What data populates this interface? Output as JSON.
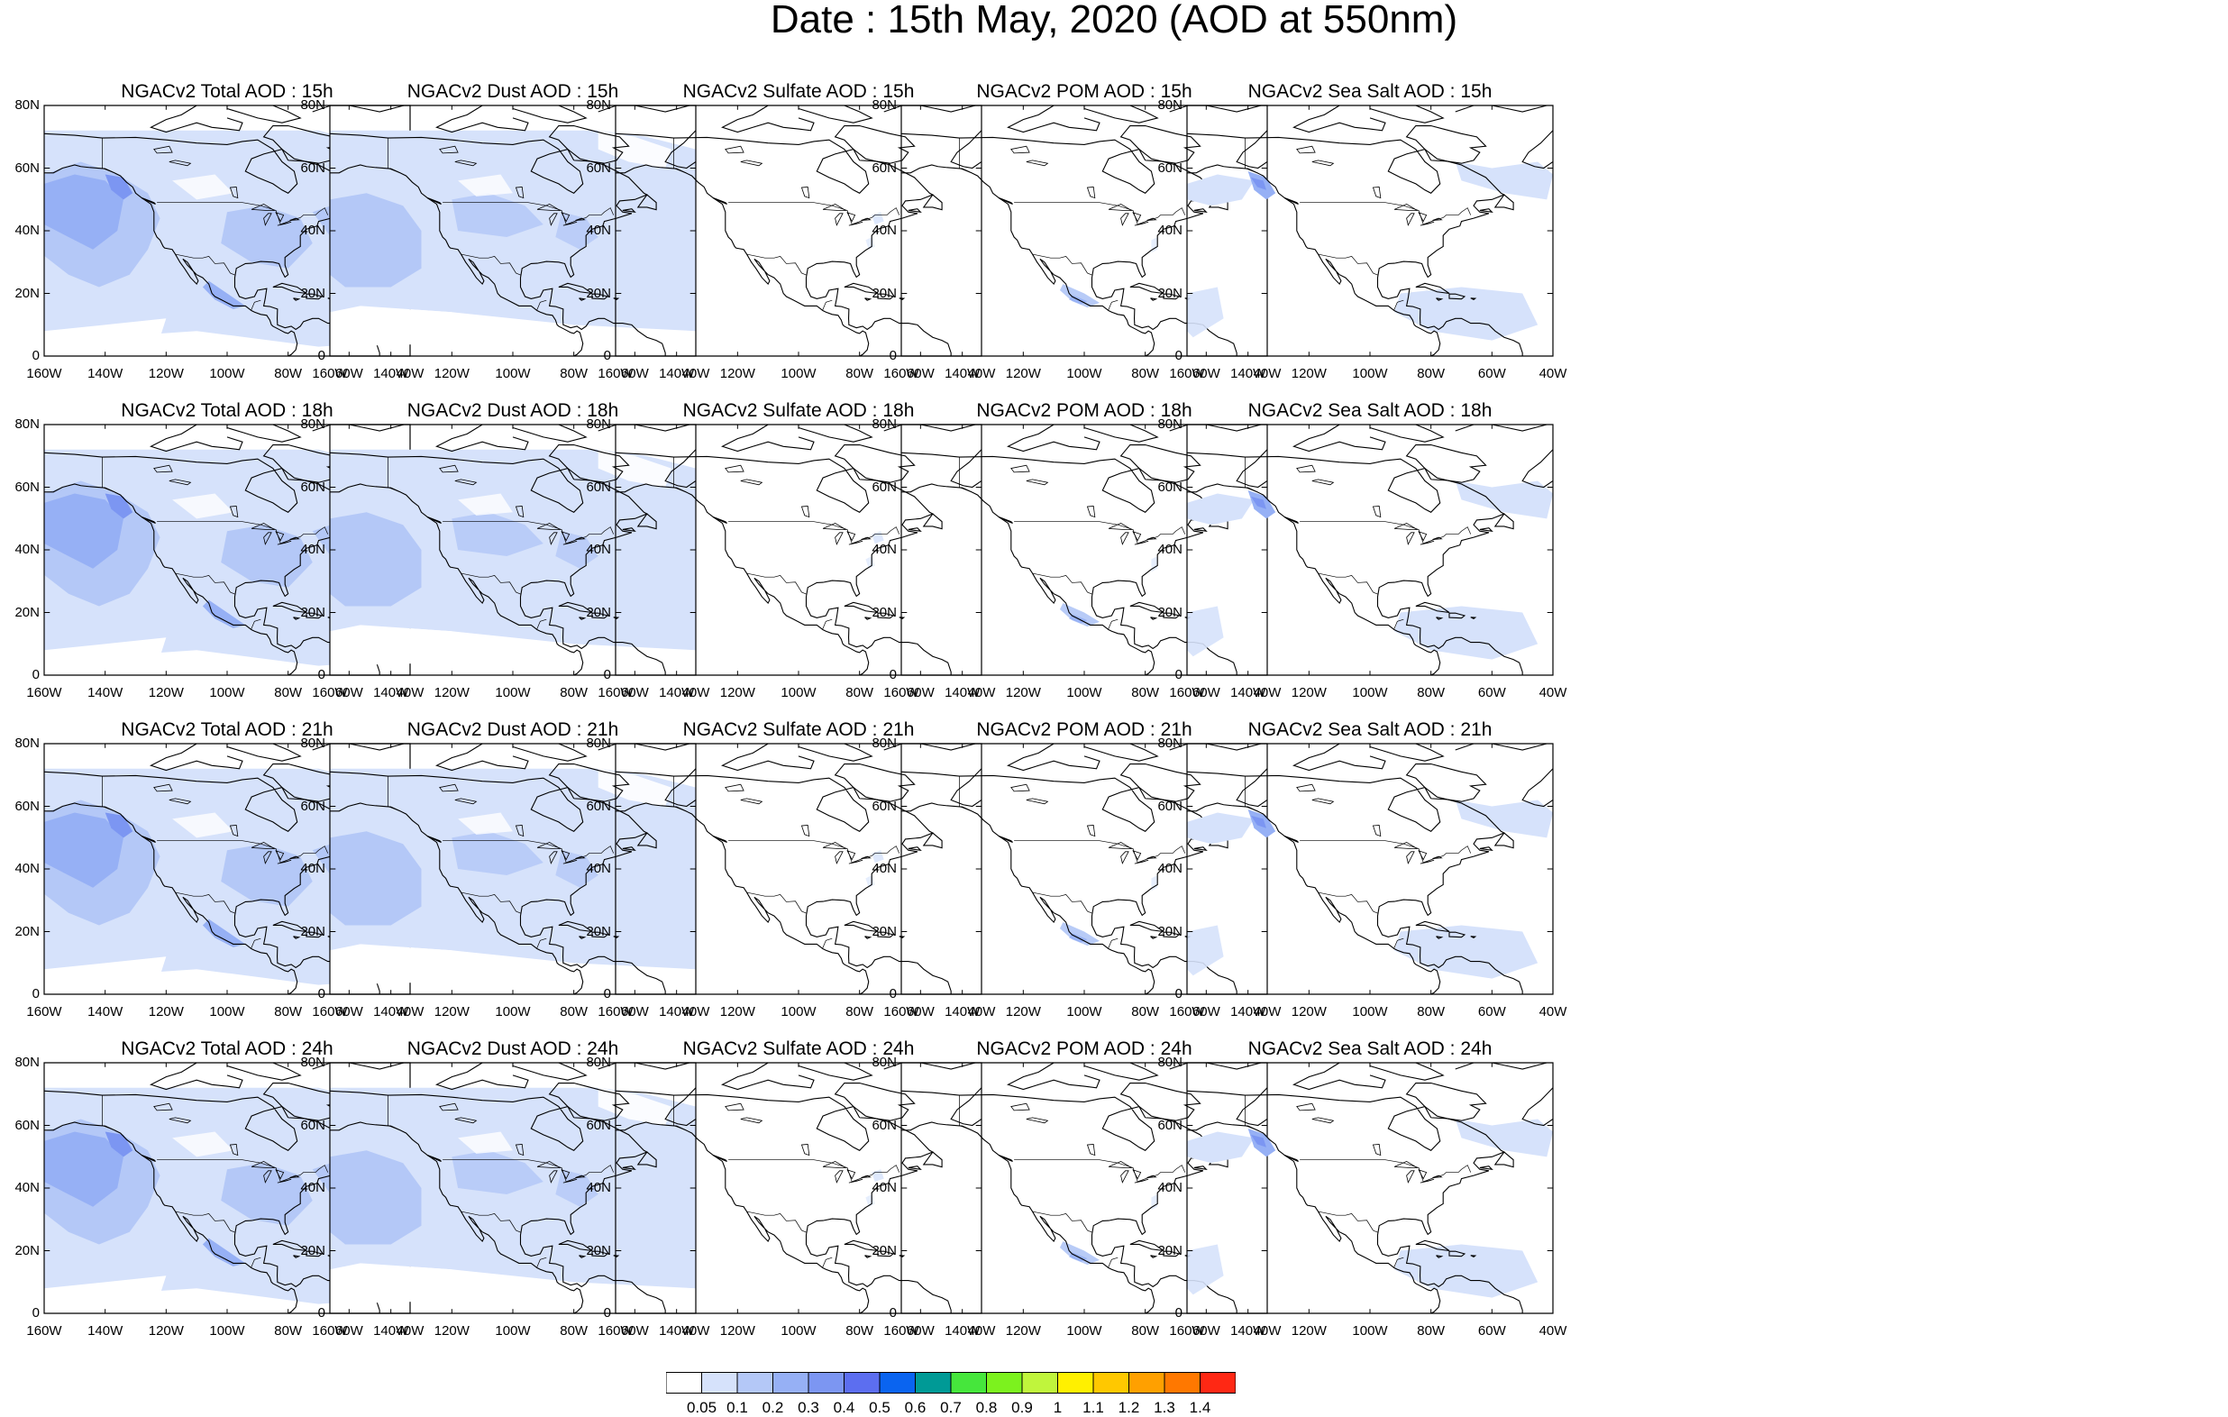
{
  "title": "Date : 15th May, 2020 (AOD at 550nm)",
  "lat_ticks": [
    "80N",
    "60N",
    "40N",
    "20N",
    "0"
  ],
  "lon_ticks": [
    "160W",
    "140W",
    "120W",
    "100W",
    "80W",
    "60W",
    "40W"
  ],
  "panels": [
    {
      "title": "NGACv2 Total AOD : 15h",
      "species": "total"
    },
    {
      "title": "NGACv2 Dust AOD : 15h",
      "species": "dust"
    },
    {
      "title": "NGACv2 Sulfate AOD : 15h",
      "species": "sulfate"
    },
    {
      "title": "NGACv2 POM AOD : 15h",
      "species": "pom"
    },
    {
      "title": "NGACv2 Sea Salt AOD : 15h",
      "species": "seasalt"
    },
    {
      "title": "NGACv2 Total AOD : 18h",
      "species": "total"
    },
    {
      "title": "NGACv2 Dust AOD : 18h",
      "species": "dust"
    },
    {
      "title": "NGACv2 Sulfate AOD : 18h",
      "species": "sulfate"
    },
    {
      "title": "NGACv2 POM AOD : 18h",
      "species": "pom"
    },
    {
      "title": "NGACv2 Sea Salt AOD : 18h",
      "species": "seasalt"
    },
    {
      "title": "NGACv2 Total AOD : 21h",
      "species": "total"
    },
    {
      "title": "NGACv2 Dust AOD : 21h",
      "species": "dust"
    },
    {
      "title": "NGACv2 Sulfate AOD : 21h",
      "species": "sulfate"
    },
    {
      "title": "NGACv2 POM AOD : 21h",
      "species": "pom"
    },
    {
      "title": "NGACv2 Sea Salt AOD : 21h",
      "species": "seasalt"
    },
    {
      "title": "NGACv2 Total AOD : 24h",
      "species": "total"
    },
    {
      "title": "NGACv2 Dust AOD : 24h",
      "species": "dust"
    },
    {
      "title": "NGACv2 Sulfate AOD : 24h",
      "species": "sulfate"
    },
    {
      "title": "NGACv2 POM AOD : 24h",
      "species": "pom"
    },
    {
      "title": "NGACv2 Sea Salt  AOD : 24h",
      "species": "seasalt"
    }
  ],
  "colorbar": {
    "labels": [
      "0.05",
      "0.1",
      "0.2",
      "0.3",
      "0.4",
      "0.5",
      "0.6",
      "0.7",
      "0.8",
      "0.9",
      "1",
      "1.1",
      "1.2",
      "1.3",
      "1.4"
    ],
    "colors": [
      "#ffffff",
      "#d6e2fb",
      "#b4c8f7",
      "#96b0f5",
      "#7c96f2",
      "#5c6ef0",
      "#0a64f0",
      "#009a96",
      "#46e63c",
      "#7cf21e",
      "#c0f53c",
      "#fff000",
      "#ffc800",
      "#ffa000",
      "#ff7800",
      "#ff2814"
    ]
  }
}
